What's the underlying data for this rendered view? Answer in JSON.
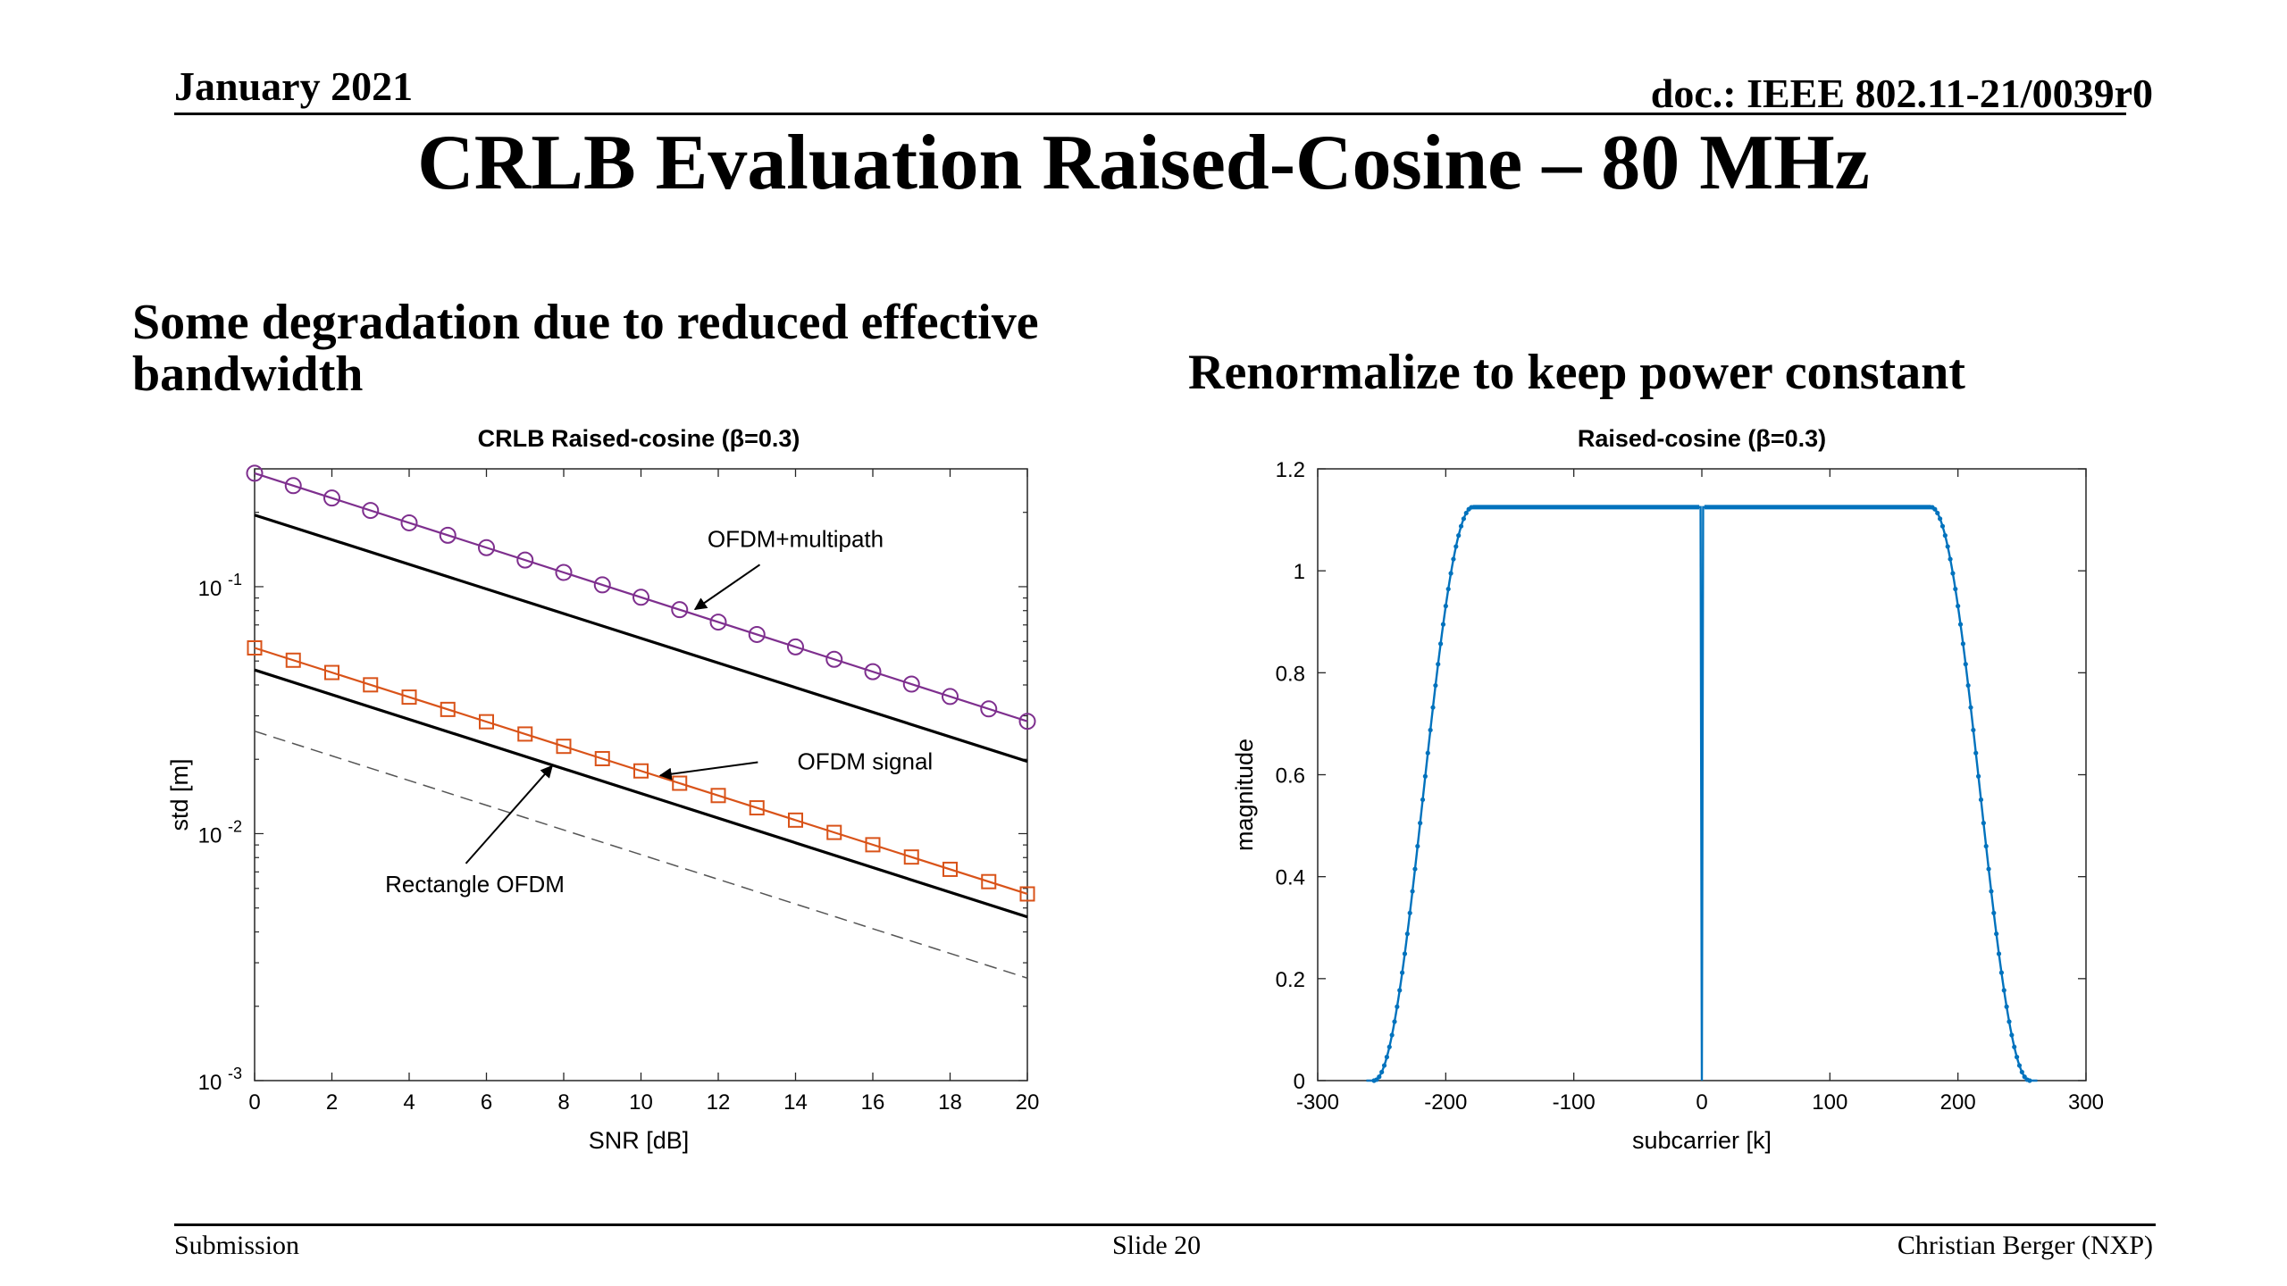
{
  "header": {
    "date": "January 2021",
    "doc": "doc.: IEEE 802.11-21/0039r0"
  },
  "title": "CRLB Evaluation Raised-Cosine – 80 MHz",
  "left_subtitle": "Some degradation due to reduced effective bandwidth",
  "right_subtitle": "Renormalize to keep power constant",
  "footer": {
    "left": "Submission",
    "center": "Slide 20",
    "right": "Christian Berger (NXP)"
  },
  "colors": {
    "purple": "#7e2f8e",
    "orange": "#d95319",
    "blue": "#0072bd",
    "black": "#000000",
    "dashed": "#555555"
  },
  "chart_data": [
    {
      "type": "line",
      "title": "CRLB Raised-cosine (β=0.3)",
      "xlabel": "SNR [dB]",
      "ylabel": "std [m]",
      "xlim": [
        0,
        20
      ],
      "ylim": [
        0.001,
        0.3
      ],
      "yscale": "log",
      "xticks": [
        "0",
        "2",
        "4",
        "6",
        "8",
        "10",
        "12",
        "14",
        "16",
        "18",
        "20"
      ],
      "yticks": [
        {
          "base": "10",
          "exp": "-1"
        },
        {
          "base": "10",
          "exp": "-2"
        },
        {
          "base": "10",
          "exp": "-3"
        }
      ],
      "grid": false,
      "series": [
        {
          "color_key": "purple",
          "marker": "circle",
          "y0": 0.288,
          "y20": 0.0285
        },
        {
          "color_key": "black",
          "marker": "none",
          "y0": 0.195,
          "y20": 0.0196
        },
        {
          "color_key": "orange",
          "marker": "square",
          "y0": 0.0565,
          "y20": 0.0057
        },
        {
          "color_key": "black",
          "marker": "none",
          "y0": 0.046,
          "y20": 0.0046
        },
        {
          "color_key": "dashed",
          "marker": "none",
          "dashed": true,
          "y0": 0.026,
          "y20": 0.0026
        }
      ],
      "annotations": [
        {
          "text": "OFDM+multipath",
          "text_x": 14.0,
          "text_y": 0.145,
          "arrow_to_x": 11.4,
          "arrow_to_y": 0.081
        },
        {
          "text": "OFDM signal",
          "text_x": 15.8,
          "text_y": 0.0182,
          "arrow_to_x": 10.5,
          "arrow_to_y": 0.0172
        },
        {
          "text": "Rectangle OFDM",
          "text_x": 5.7,
          "text_y": 0.0058,
          "arrow_to_x": 7.7,
          "arrow_to_y": 0.0188
        }
      ]
    },
    {
      "type": "line",
      "title": "Raised-cosine (β=0.3)",
      "xlabel": "subcarrier [k]",
      "ylabel": "magnitude",
      "xlim": [
        -300,
        300
      ],
      "ylim": [
        0,
        1.2
      ],
      "xticks": [
        "-300",
        "-200",
        "-100",
        "0",
        "100",
        "200",
        "300"
      ],
      "yticks": [
        "0",
        "0.2",
        "0.4",
        "0.6",
        "0.8",
        "1",
        "1.2"
      ],
      "grid": false,
      "plateau": 1.125,
      "flat_edge": 179,
      "band_edge": 256,
      "null_at": 0,
      "color_key": "blue"
    }
  ]
}
